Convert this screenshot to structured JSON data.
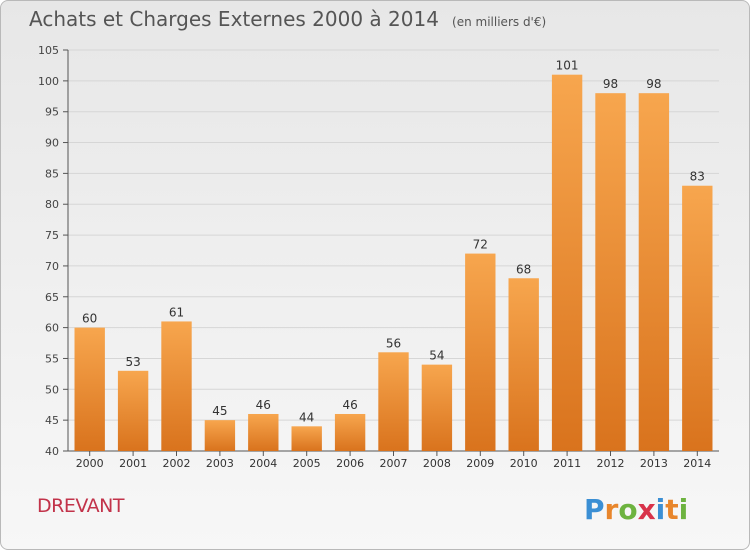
{
  "header": {
    "title": "Achats et Charges Externes 2000 à 2014",
    "subtitle": "(en milliers d'€)"
  },
  "footer": {
    "commune": "DREVANT",
    "logo_text": "Proxiti"
  },
  "colors": {
    "bar_top": "#f7a64e",
    "bar_bottom": "#d9731d",
    "commune_text": "#c2334a",
    "grid": "#d6d6d6"
  },
  "chart_data": {
    "type": "bar",
    "title": "Achats et Charges Externes 2000 à 2014",
    "subtitle": "(en milliers d'€)",
    "categories": [
      "2000",
      "2001",
      "2002",
      "2003",
      "2004",
      "2005",
      "2006",
      "2007",
      "2008",
      "2009",
      "2010",
      "2011",
      "2012",
      "2013",
      "2014"
    ],
    "values": [
      60,
      53,
      61,
      45,
      46,
      44,
      46,
      56,
      54,
      72,
      68,
      101,
      98,
      98,
      83
    ],
    "ylim": [
      40,
      105
    ],
    "yticks": [
      40,
      45,
      50,
      55,
      60,
      65,
      70,
      75,
      80,
      85,
      90,
      95,
      100,
      105
    ],
    "grid": true,
    "data_labels": true
  }
}
